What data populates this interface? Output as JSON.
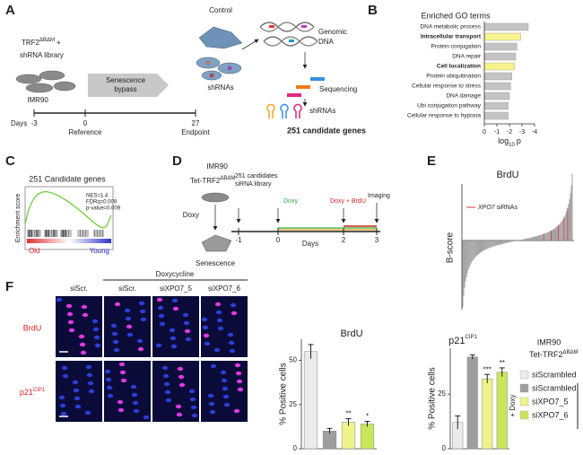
{
  "panels": {
    "A": {
      "label": "A",
      "trf2": "TRF2",
      "trf2_sup": "ΔBΔM",
      "plus": "+",
      "library": "shRNA library",
      "cell_line": "IMR90",
      "bypass_1": "Senescence",
      "bypass_2": "bypass",
      "control": "Control",
      "shrnas": "shRNAs",
      "genomic": "Genomic",
      "dna": "DNA",
      "sequencing": "Sequencing",
      "shrnas_2": "shRNAs",
      "result": "251 candidate genes",
      "days": "Days",
      "day_start": "-3",
      "day_ref": "0",
      "day_end": "27",
      "reference": "Reference",
      "endpoint": "Endpoint"
    },
    "B": {
      "label": "B"
    },
    "C": {
      "label": "C",
      "title": "251 Candidate genes",
      "ylabel": "Enrichment  score",
      "nes": "NES=1.4",
      "fdr": "FDRq=0.009",
      "pval": "p-value=0.009",
      "old": "Old",
      "young": "Young"
    },
    "D": {
      "label": "D",
      "cell_line": "IMR90",
      "tet": "Tet-TRF2",
      "tet_sup": "ΔBΔM",
      "doxy": "Doxy",
      "senescence": "Senescence",
      "candidates": "251 candidates",
      "library": "siRNA library",
      "doxy_2": "Doxy",
      "doxy_brdu": "Doxy + BrdU",
      "imaging": "Imaging",
      "t1": "-1",
      "t2": "0",
      "t3": "2",
      "t4": "3",
      "days": "Days"
    },
    "E": {
      "label": "E",
      "title": "BrdU",
      "ylabel": "B-score",
      "legend_gene": "XPO7",
      "legend_rest": " siRNAs"
    },
    "F": {
      "label": "F",
      "doxycycline": "Doxycycline",
      "columns": [
        "siScr.",
        "siScr.",
        "siXPO7_5",
        "siXPO7_6"
      ],
      "row_brdu": "BrdU",
      "row_p21": "p21",
      "row_p21_sup": "CIP1",
      "legend": {
        "line1": "IMR90",
        "line2": "Tet-TRF2",
        "line2_sup": "ΔBΔM",
        "doxy": "+ Doxy",
        "items": [
          {
            "name": "siScrambled",
            "color": "#ebebeb"
          },
          {
            "name": "siScrambled",
            "color": "#9e9e9e"
          },
          {
            "name": "siXPO7_5",
            "color": "#eef38c"
          },
          {
            "name": "siXPO7_6",
            "color": "#c8e65a"
          }
        ]
      }
    }
  },
  "chart_data": [
    {
      "type": "hbar",
      "title": "Enriched GO terms",
      "categories": [
        "DNA metabolic process",
        "Intracellular transport",
        "Protein conjugation",
        "DNA repair",
        "Cell localization",
        "Protein ubiquitination",
        "Cellular response to stress",
        "DNA damage",
        "Ubi conjugation pathway",
        "Cellular response to hypoxia"
      ],
      "values": [
        -3.5,
        -2.9,
        -2.6,
        -2.5,
        -2.4,
        -2.2,
        -2.1,
        -2.0,
        -1.9,
        -1.9
      ],
      "highlight": [
        false,
        true,
        false,
        false,
        true,
        false,
        false,
        false,
        false,
        false
      ],
      "color": "#c4c4c4",
      "highlight_color": "#f7f28c",
      "xlim": [
        0,
        -4
      ],
      "xticks": [
        0,
        -1,
        -2,
        -3,
        -4
      ],
      "xlabel": "log",
      "xlabel_sub": "10",
      "xlabel_suffix": "p"
    },
    {
      "type": "bar",
      "title": "BrdU",
      "ylabel": "% Positive cells",
      "categories": [
        null,
        null,
        null,
        null
      ],
      "values": [
        55,
        10,
        15,
        14
      ],
      "errors": [
        4,
        1.5,
        2,
        1.5
      ],
      "annotations": [
        null,
        null,
        "**",
        "*"
      ],
      "colors": [
        "#ebebeb",
        "#9e9e9e",
        "#eef38c",
        "#c8e65a"
      ],
      "ylim": [
        0,
        62
      ],
      "yticks": [
        0,
        25,
        50
      ]
    },
    {
      "type": "bar",
      "title": "p21",
      "title_sup": "CIP1",
      "ylabel": "% Positive cells",
      "categories": [
        null,
        null,
        null,
        null
      ],
      "values": [
        12,
        42,
        32,
        35
      ],
      "errors": [
        3,
        1,
        2,
        2
      ],
      "annotations": [
        null,
        null,
        "***",
        "**"
      ],
      "colors": [
        "#ebebeb",
        "#9e9e9e",
        "#eef38c",
        "#c8e65a"
      ],
      "ylim": [
        0,
        46
      ],
      "yticks": [
        0,
        25
      ]
    }
  ]
}
